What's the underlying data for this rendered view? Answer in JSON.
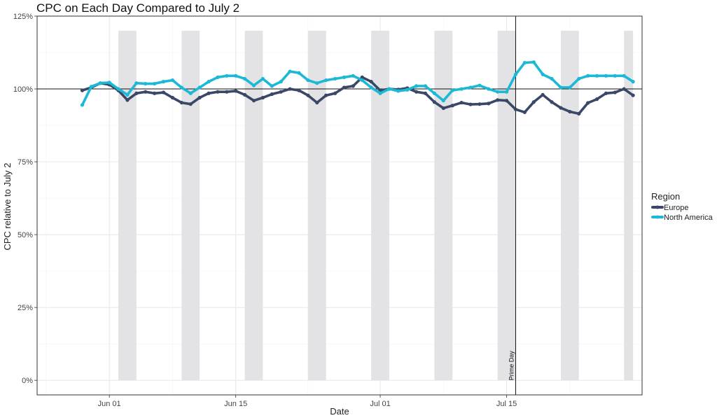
{
  "chart_data": {
    "type": "line",
    "title": "CPC on Each Day Compared to July 2",
    "xlabel": "Date",
    "ylabel": "CPC relative to July 2",
    "ylim": [
      -0.05,
      1.25
    ],
    "y_ticks": [
      {
        "value": 0,
        "label": "0%"
      },
      {
        "value": 0.25,
        "label": "25%"
      },
      {
        "value": 0.5,
        "label": "50%"
      },
      {
        "value": 0.75,
        "label": "75%"
      },
      {
        "value": 1.0,
        "label": "100%"
      },
      {
        "value": 1.25,
        "label": "125%"
      }
    ],
    "xlim": [
      "2020-05-24",
      "2020-07-30"
    ],
    "x_ticks": [
      {
        "value": "2020-06-01",
        "label": "Jun 01"
      },
      {
        "value": "2020-06-15",
        "label": "Jun 15"
      },
      {
        "value": "2020-07-01",
        "label": "Jul 01"
      },
      {
        "value": "2020-07-15",
        "label": "Jul 15"
      }
    ],
    "grid": true,
    "reference_line_y": 1.0,
    "annotation": {
      "date": "2020-07-16",
      "label": "Prime Day"
    },
    "shaded_bands": [
      {
        "start": "2020-06-02",
        "end": "2020-06-04"
      },
      {
        "start": "2020-06-09",
        "end": "2020-06-11"
      },
      {
        "start": "2020-06-16",
        "end": "2020-06-18"
      },
      {
        "start": "2020-06-23",
        "end": "2020-06-25"
      },
      {
        "start": "2020-06-30",
        "end": "2020-07-02"
      },
      {
        "start": "2020-07-07",
        "end": "2020-07-09"
      },
      {
        "start": "2020-07-14",
        "end": "2020-07-16"
      },
      {
        "start": "2020-07-21",
        "end": "2020-07-23"
      },
      {
        "start": "2020-07-28",
        "end": "2020-07-29"
      }
    ],
    "dates": [
      "2020-05-29",
      "2020-05-30",
      "2020-05-31",
      "2020-06-01",
      "2020-06-02",
      "2020-06-03",
      "2020-06-04",
      "2020-06-05",
      "2020-06-06",
      "2020-06-07",
      "2020-06-08",
      "2020-06-09",
      "2020-06-10",
      "2020-06-11",
      "2020-06-12",
      "2020-06-13",
      "2020-06-14",
      "2020-06-15",
      "2020-06-16",
      "2020-06-17",
      "2020-06-18",
      "2020-06-19",
      "2020-06-20",
      "2020-06-21",
      "2020-06-22",
      "2020-06-23",
      "2020-06-24",
      "2020-06-25",
      "2020-06-26",
      "2020-06-27",
      "2020-06-28",
      "2020-06-29",
      "2020-06-30",
      "2020-07-01",
      "2020-07-02",
      "2020-07-03",
      "2020-07-04",
      "2020-07-05",
      "2020-07-06",
      "2020-07-07",
      "2020-07-08",
      "2020-07-09",
      "2020-07-10",
      "2020-07-11",
      "2020-07-12",
      "2020-07-13",
      "2020-07-14",
      "2020-07-15",
      "2020-07-16",
      "2020-07-17",
      "2020-07-18",
      "2020-07-19",
      "2020-07-20",
      "2020-07-21",
      "2020-07-22",
      "2020-07-23",
      "2020-07-24",
      "2020-07-25",
      "2020-07-26",
      "2020-07-27",
      "2020-07-28",
      "2020-07-29"
    ],
    "series": [
      {
        "name": "Europe",
        "color": "#3a4766",
        "values": [
          0.995,
          1.005,
          1.02,
          1.015,
          0.995,
          0.962,
          0.985,
          0.99,
          0.985,
          0.988,
          0.97,
          0.953,
          0.948,
          0.97,
          0.985,
          0.99,
          0.99,
          0.993,
          0.98,
          0.96,
          0.97,
          0.982,
          0.99,
          1.0,
          0.995,
          0.978,
          0.953,
          0.978,
          0.985,
          1.005,
          1.01,
          1.04,
          1.025,
          0.995,
          1.0,
          0.998,
          1.003,
          0.99,
          0.985,
          0.955,
          0.934,
          0.943,
          0.953,
          0.947,
          0.948,
          0.95,
          0.962,
          0.96,
          0.93,
          0.92,
          0.955,
          0.98,
          0.955,
          0.935,
          0.922,
          0.915,
          0.952,
          0.965,
          0.985,
          0.988,
          1.0,
          0.978
        ]
      },
      {
        "name": "North America",
        "color": "#1bb9d6",
        "values": [
          0.945,
          1.008,
          1.02,
          1.022,
          1.0,
          0.98,
          1.02,
          1.018,
          1.018,
          1.025,
          1.03,
          1.005,
          0.985,
          1.005,
          1.025,
          1.04,
          1.045,
          1.045,
          1.035,
          1.012,
          1.035,
          1.01,
          1.025,
          1.06,
          1.055,
          1.03,
          1.02,
          1.03,
          1.035,
          1.04,
          1.045,
          1.03,
          1.005,
          0.985,
          1.0,
          0.993,
          0.997,
          1.01,
          1.01,
          0.985,
          0.96,
          0.995,
          1.0,
          1.005,
          1.012,
          1.0,
          0.99,
          0.99,
          1.05,
          1.09,
          1.092,
          1.05,
          1.035,
          1.005,
          1.005,
          1.035,
          1.045,
          1.045,
          1.045,
          1.045,
          1.045,
          1.025
        ]
      }
    ],
    "legend": {
      "title": "Region",
      "position": "right",
      "items": [
        "Europe",
        "North America"
      ]
    }
  }
}
